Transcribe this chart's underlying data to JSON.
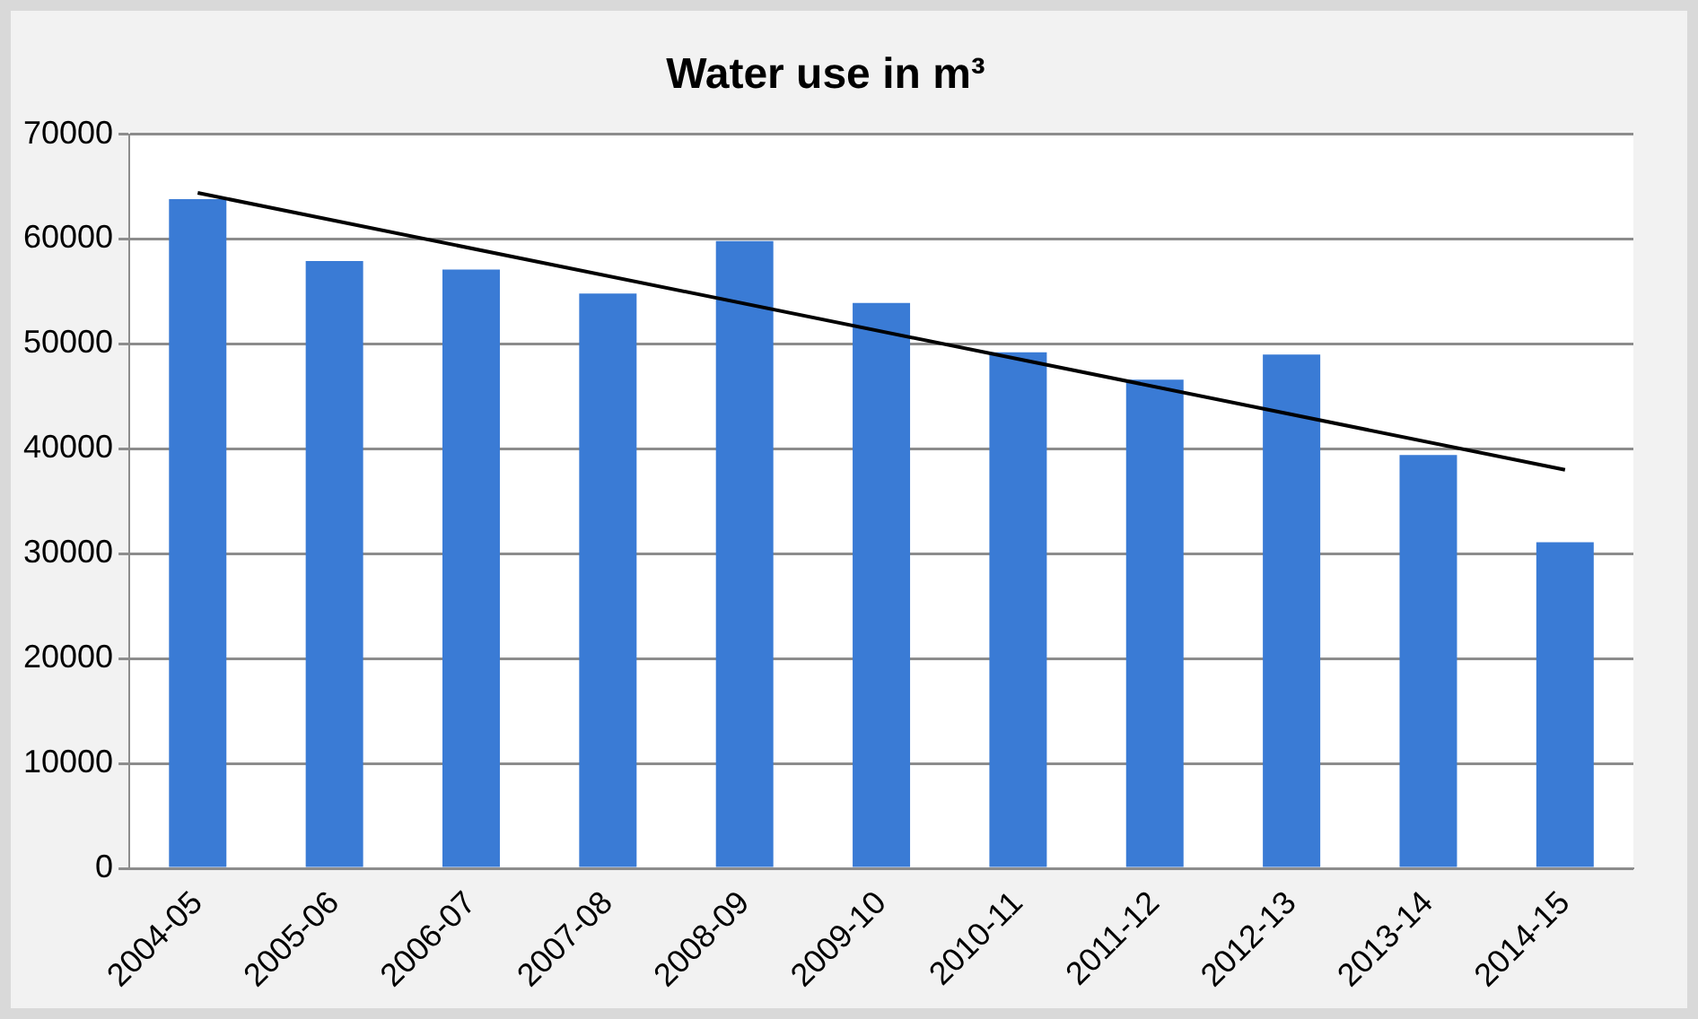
{
  "chart_data": {
    "type": "bar",
    "title": "Water use in m³",
    "categories": [
      "2004-05",
      "2005-06",
      "2006-07",
      "2007-08",
      "2008-09",
      "2009-10",
      "2010-11",
      "2011-12",
      "2012-13",
      "2013-14",
      "2014-15"
    ],
    "series": [
      {
        "color": "#3a7bd5",
        "values": [
          63800,
          57900,
          57100,
          54800,
          59800,
          53900,
          49200,
          46600,
          49000,
          39400,
          31100
        ]
      },
      {
        "type": "line",
        "color": "#000000",
        "values": [
          64400,
          null,
          null,
          null,
          null,
          null,
          null,
          null,
          null,
          null,
          38000
        ]
      }
    ],
    "ylim": [
      0,
      70000
    ],
    "yticks": [
      0,
      10000,
      20000,
      30000,
      40000,
      50000,
      60000,
      70000
    ],
    "grid": "y",
    "legend": false,
    "marker": "none"
  }
}
